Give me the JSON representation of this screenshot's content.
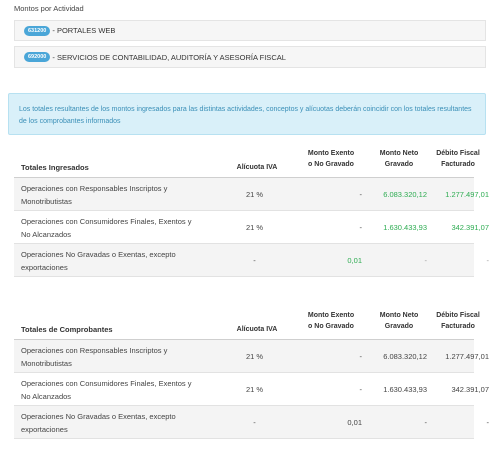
{
  "section": {
    "title": "Montos por Actividad"
  },
  "activities": [
    {
      "code": "631200",
      "label": "- PORTALES WEB"
    },
    {
      "code": "692000",
      "label": "- SERVICIOS DE CONTABILIDAD, AUDITORÍA Y ASESORÍA FISCAL"
    }
  ],
  "info": {
    "text": "Los totales resultantes de los montos ingresados para las distintas actividades, conceptos y alícuotas deberán coincidir con los totales resultantes de los comprobantes informados"
  },
  "colors": {
    "accent_blue": "#4aa6d8",
    "info_bg": "#d9f0f9",
    "info_text": "#3a8fb7",
    "positive_green": "#2eac52"
  },
  "headers": {
    "aliquota": "Alícuota IVA",
    "exento": [
      "Monto Exento",
      "o No Gravado"
    ],
    "neto": [
      "Monto Neto",
      "Gravado"
    ],
    "debito": [
      "Débito Fiscal",
      "Facturado"
    ]
  },
  "ingresados": {
    "title": "Totales Ingresados",
    "rows": [
      {
        "concept": "Operaciones con Responsables Inscriptos y Monotributistas",
        "aliquota": "21 %",
        "exento": "-",
        "neto": "6.083.320,12",
        "debito": "1.277.497,01"
      },
      {
        "concept": "Operaciones con Consumidores Finales, Exentos y No Alcanzados",
        "aliquota": "21 %",
        "exento": "-",
        "neto": "1.630.433,93",
        "debito": "342.391,07"
      },
      {
        "concept": "Operaciones No Gravadas o Exentas, excepto exportaciones",
        "aliquota": "-",
        "exento": "0,01",
        "neto": "-",
        "debito": "-"
      }
    ]
  },
  "comprobantes": {
    "title": "Totales de Comprobantes",
    "rows": [
      {
        "concept": "Operaciones con Responsables Inscriptos y Monotributistas",
        "aliquota": "21 %",
        "exento": "-",
        "neto": "6.083.320,12",
        "debito": "1.277.497,01"
      },
      {
        "concept": "Operaciones con Consumidores Finales, Exentos y No Alcanzados",
        "aliquota": "21 %",
        "exento": "-",
        "neto": "1.630.433,93",
        "debito": "342.391,07"
      },
      {
        "concept": "Operaciones No Gravadas o Exentas, excepto exportaciones",
        "aliquota": "-",
        "exento": "0,01",
        "neto": "-",
        "debito": "-"
      }
    ]
  }
}
